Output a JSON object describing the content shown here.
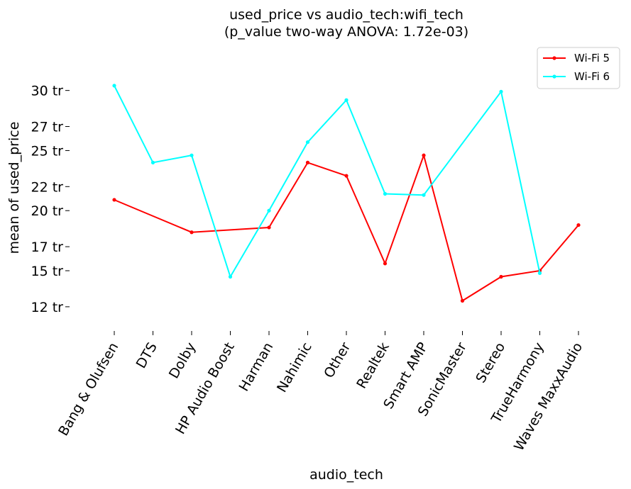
{
  "chart_data": {
    "type": "line",
    "title_line1": "used_price vs audio_tech:wifi_tech",
    "title_line2": "(p_value two-way ANOVA: 1.72e-03)",
    "xlabel": "audio_tech",
    "ylabel": "mean of used_price",
    "categories": [
      "Bang & Olufsen",
      "DTS",
      "Dolby",
      "HP Audio Boost",
      "Harman",
      "Nahimic",
      "Other",
      "Realtek",
      "Smart AMP",
      "SonicMaster",
      "Stereo",
      "TrueHarmony",
      "Waves MaxxAudio"
    ],
    "yticks": [
      12,
      15,
      17,
      20,
      22,
      25,
      27,
      30
    ],
    "ytick_labels": [
      "12 tr",
      "15 tr",
      "17 tr",
      "20 tr",
      "22 tr",
      "25 tr",
      "27 tr",
      "30 tr"
    ],
    "ylim": [
      10.4,
      33.4
    ],
    "grid": false,
    "legend_position": "top-right",
    "series": [
      {
        "name": "Wi-Fi 5",
        "color": "#ff0000",
        "values": [
          20.9,
          null,
          18.2,
          null,
          18.6,
          24.0,
          22.9,
          15.6,
          24.6,
          12.5,
          14.5,
          15.0,
          18.8
        ]
      },
      {
        "name": "Wi-Fi 6",
        "color": "#00ffff",
        "values": [
          30.4,
          24.0,
          24.6,
          14.5,
          20.0,
          25.7,
          29.2,
          21.4,
          21.3,
          null,
          29.9,
          14.8,
          null
        ]
      }
    ]
  }
}
